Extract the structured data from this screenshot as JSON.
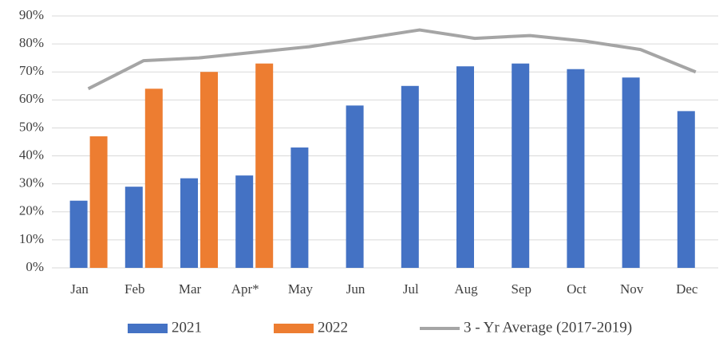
{
  "chart_data": {
    "type": "bar",
    "categories": [
      "Jan",
      "Feb",
      "Mar",
      "Apr*",
      "May",
      "Jun",
      "Jul",
      "Aug",
      "Sep",
      "Oct",
      "Nov",
      "Dec"
    ],
    "series": [
      {
        "name": "2021",
        "type": "bar",
        "color": "#4472c4",
        "values": [
          24,
          29,
          32,
          33,
          43,
          58,
          65,
          72,
          73,
          71,
          68,
          56
        ]
      },
      {
        "name": "2022",
        "type": "bar",
        "color": "#ed7d31",
        "values": [
          47,
          64,
          70,
          73,
          null,
          null,
          null,
          null,
          null,
          null,
          null,
          null
        ]
      },
      {
        "name": "3 - Yr Average (2017-2019)",
        "type": "line",
        "color": "#a5a5a5",
        "values": [
          64,
          74,
          75,
          77,
          79,
          82,
          85,
          82,
          83,
          81,
          78,
          70
        ]
      }
    ],
    "ylim": [
      0,
      90
    ],
    "yticks": [
      {
        "value": 0,
        "label": "0%"
      },
      {
        "value": 10,
        "label": "10%"
      },
      {
        "value": 20,
        "label": "20%"
      },
      {
        "value": 30,
        "label": "30%"
      },
      {
        "value": 40,
        "label": "40%"
      },
      {
        "value": 50,
        "label": "50%"
      },
      {
        "value": 60,
        "label": "60%"
      },
      {
        "value": 70,
        "label": "70%"
      },
      {
        "value": 80,
        "label": "80%"
      },
      {
        "value": 90,
        "label": "90%"
      }
    ],
    "grid": true,
    "legend": "bottom"
  }
}
